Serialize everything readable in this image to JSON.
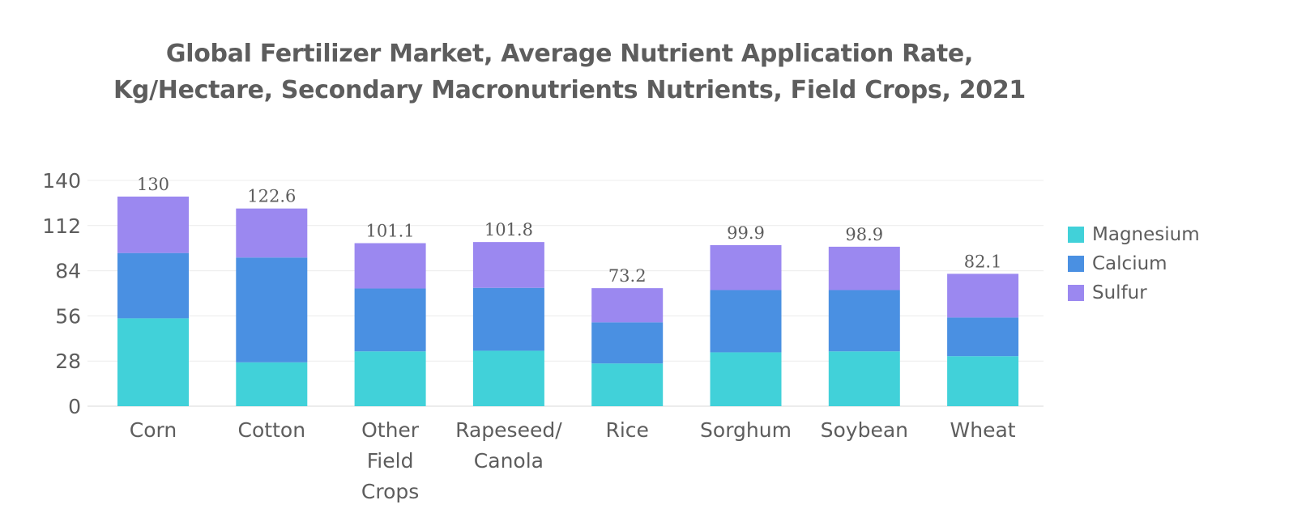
{
  "chart_data": {
    "type": "bar",
    "stacked": true,
    "title": [
      "Global Fertilizer Market, Average Nutrient Application Rate,",
      "Kg/Hectare, Secondary Macronutrients Nutrients, Field Crops, 2021"
    ],
    "categories": [
      [
        "Corn"
      ],
      [
        "Cotton"
      ],
      [
        "Other",
        "Field",
        "Crops"
      ],
      [
        "Rapeseed/",
        "Canola"
      ],
      [
        "Rice"
      ],
      [
        "Sorghum"
      ],
      [
        "Soybean"
      ],
      [
        "Wheat"
      ]
    ],
    "series": [
      {
        "name": "Magnesium",
        "color": "#41d1d9",
        "values": [
          54.5,
          27.2,
          34.0,
          34.4,
          26.5,
          33.4,
          34.0,
          31.0
        ]
      },
      {
        "name": "Calcium",
        "color": "#4a90e2",
        "values": [
          40.5,
          65.0,
          39.0,
          39.0,
          25.5,
          38.6,
          38.0,
          24.0
        ]
      },
      {
        "name": "Sulfur",
        "color": "#9b88f0",
        "values": [
          35.0,
          30.4,
          28.1,
          28.4,
          21.2,
          27.9,
          26.9,
          27.1
        ]
      }
    ],
    "totals": [
      "130",
      "122.6",
      "101.1",
      "101.8",
      "73.2",
      "99.9",
      "98.9",
      "82.1"
    ],
    "yticks": [
      "0",
      "28",
      "56",
      "84",
      "112",
      "140"
    ],
    "ylim": [
      0,
      140
    ],
    "grid": true,
    "legend_position": "right"
  }
}
